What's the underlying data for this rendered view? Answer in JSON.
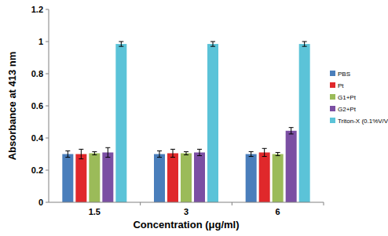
{
  "chart_data": {
    "type": "bar",
    "x_label": "Concentration  (μg/ml)",
    "y_label": "Absorbance at 413 nm",
    "categories": [
      "1.5",
      "3",
      "6"
    ],
    "series": [
      {
        "name": "PBS",
        "color": "#4a7ebb",
        "values": [
          0.3,
          0.3,
          0.3
        ],
        "errors": [
          0.02,
          0.02,
          0.015
        ]
      },
      {
        "name": "Pt",
        "color": "#e0282b",
        "values": [
          0.3,
          0.305,
          0.31
        ],
        "errors": [
          0.03,
          0.025,
          0.025
        ]
      },
      {
        "name": "G1+Pt",
        "color": "#9bbb59",
        "values": [
          0.305,
          0.305,
          0.3
        ],
        "errors": [
          0.01,
          0.01,
          0.01
        ]
      },
      {
        "name": "G2+Pt",
        "color": "#7b4fa3",
        "values": [
          0.31,
          0.31,
          0.445
        ],
        "errors": [
          0.03,
          0.02,
          0.02
        ]
      },
      {
        "name": "Triton-X (0.1%V/V)",
        "color": "#5bc3d8",
        "values": [
          0.985,
          0.985,
          0.985
        ],
        "errors": [
          0.015,
          0.015,
          0.015
        ]
      }
    ],
    "ylim": [
      0,
      1.2
    ],
    "yticks": [
      0,
      0.2,
      0.4,
      0.6,
      0.8,
      1,
      1.2
    ],
    "grid": false,
    "legend": "right"
  }
}
